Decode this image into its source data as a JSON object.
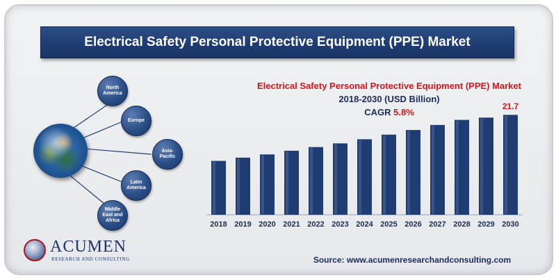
{
  "banner": {
    "title": "Electrical Safety Personal Protective Equipment (PPE) Market"
  },
  "subtitle": {
    "line1": "Electrical Safety Personal Protective Equipment (PPE) Market",
    "line2": "2018-2030  (USD Billion)",
    "cagr_label": "CAGR",
    "cagr_value": "5.8%"
  },
  "regions": [
    {
      "label": "North America"
    },
    {
      "label": "Europe"
    },
    {
      "label": "Asia-Pacific"
    },
    {
      "label": "Latin America"
    },
    {
      "label": "Middle East and Africa"
    }
  ],
  "logo": {
    "name": "ACUMEN",
    "tagline": "RESEARCH AND CONSULTING"
  },
  "source": "Source: www.acumenresearchandconsulting.com",
  "colors": {
    "bar": "#1f3d72",
    "accent_red": "#d7151b",
    "banner": "#1f3d72"
  },
  "chart_data": {
    "type": "bar",
    "categories": [
      "2018",
      "2019",
      "2020",
      "2021",
      "2022",
      "2023",
      "2024",
      "2025",
      "2026",
      "2027",
      "2028",
      "2029",
      "2030"
    ],
    "values": [
      11.7,
      12.4,
      13.1,
      13.9,
      14.7,
      15.5,
      16.4,
      17.4,
      18.4,
      19.5,
      20.6,
      21.1,
      21.7
    ],
    "data_labels": [
      {
        "category": "2030",
        "text": "21.7"
      }
    ],
    "ylim": [
      0,
      24
    ],
    "grid": false,
    "legend": "none",
    "xlabel": "",
    "ylabel": ""
  }
}
